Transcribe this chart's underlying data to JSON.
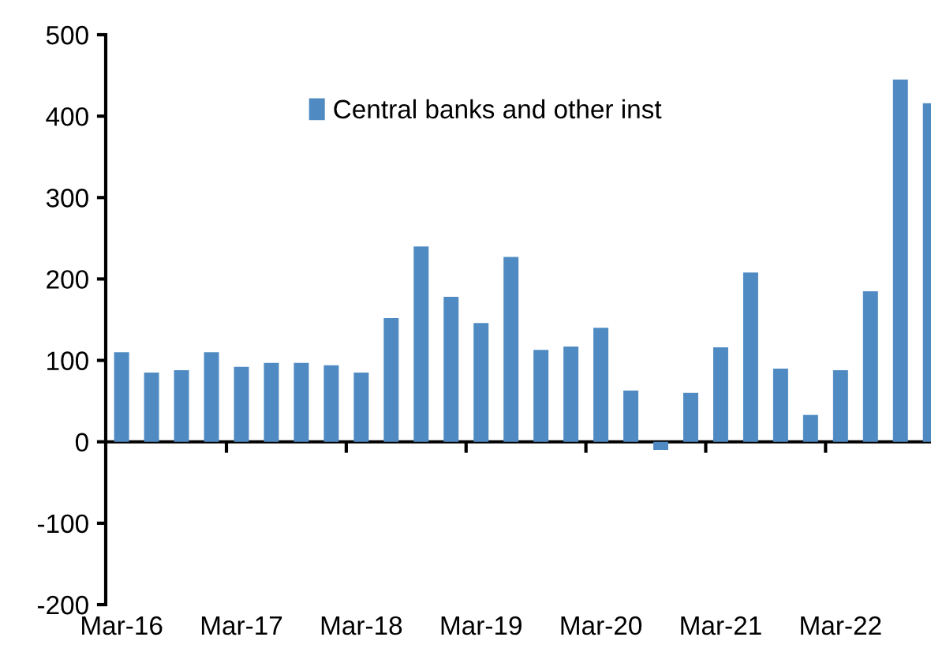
{
  "chart_data": {
    "type": "bar",
    "categories": [
      "Mar-16",
      null,
      null,
      null,
      "Mar-17",
      null,
      null,
      null,
      "Mar-18",
      null,
      null,
      null,
      "Mar-19",
      null,
      null,
      null,
      "Mar-20",
      null,
      null,
      null,
      "Mar-21",
      null,
      null,
      null,
      "Mar-22",
      null,
      null,
      null
    ],
    "series": [
      {
        "name": "Central banks and other inst",
        "color": "#4f8bc2",
        "values": [
          110,
          85,
          88,
          110,
          92,
          97,
          97,
          94,
          85,
          152,
          240,
          178,
          146,
          227,
          113,
          117,
          140,
          63,
          -10,
          60,
          116,
          208,
          90,
          33,
          88,
          185,
          445,
          416
        ]
      }
    ],
    "ylim": [
      -200,
      500
    ],
    "yticks": [
      -200,
      -100,
      0,
      100,
      200,
      300,
      400,
      500
    ],
    "legend": "top"
  }
}
